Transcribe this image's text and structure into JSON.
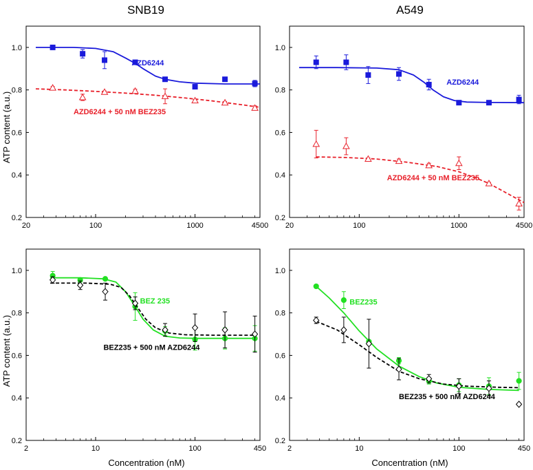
{
  "figure": {
    "ylabel": "ATP content (a.u.)",
    "xlabel": "Concentration (nM)",
    "column_titles": [
      "SNB19",
      "A549"
    ]
  },
  "colors": {
    "blue": "#1a1adb",
    "red": "#e8202a",
    "green": "#22e022",
    "black": "#000000"
  },
  "chart_data": [
    {
      "id": "snb19-azd",
      "type": "scatter",
      "title": "SNB19",
      "xlabel": "",
      "ylabel": "ATP content (a.u.)",
      "xscale": "log",
      "xlim": [
        20,
        4500
      ],
      "ylim": [
        0.2,
        1.1
      ],
      "xticks": [
        20,
        100,
        1000,
        4500
      ],
      "xtick_labels": [
        "20",
        "100",
        "1000",
        "4500"
      ],
      "yticks": [
        0.2,
        0.4,
        0.6,
        0.8,
        1.0
      ],
      "ytick_labels": [
        "0.2",
        "0.4",
        "0.6",
        "0.8",
        "1.0"
      ],
      "series": [
        {
          "name": "AZD6244",
          "color": "#1a1adb",
          "marker": "square-filled",
          "line": "solid",
          "x": [
            37,
            74,
            123,
            250,
            500,
            1000,
            2000,
            4000
          ],
          "y": [
            1.0,
            0.97,
            0.94,
            0.93,
            0.85,
            0.815,
            0.85,
            0.83
          ],
          "err": [
            0.004,
            0.02,
            0.04,
            0.005,
            0.005,
            0.01,
            0.01,
            0.015
          ],
          "fit": [
            [
              25,
              1.0
            ],
            [
              37,
              1.0
            ],
            [
              60,
              1.0
            ],
            [
              100,
              0.995
            ],
            [
              150,
              0.98
            ],
            [
              200,
              0.95
            ],
            [
              250,
              0.925
            ],
            [
              300,
              0.9
            ],
            [
              400,
              0.865
            ],
            [
              500,
              0.85
            ],
            [
              700,
              0.838
            ],
            [
              1000,
              0.832
            ],
            [
              2000,
              0.828
            ],
            [
              4500,
              0.828
            ]
          ],
          "label_text": "AZD6244",
          "label_at": [
            230,
            0.915
          ]
        },
        {
          "name": "AZD6244 + 50 nM BEZ235",
          "color": "#e8202a",
          "marker": "triangle-open",
          "line": "dashed",
          "x": [
            37,
            74,
            123,
            250,
            500,
            1000,
            2000,
            4000
          ],
          "y": [
            0.81,
            0.765,
            0.79,
            0.795,
            0.77,
            0.75,
            0.74,
            0.715
          ],
          "err": [
            0.006,
            0.015,
            0.005,
            0.008,
            0.035,
            0.005,
            0.005,
            0.01
          ],
          "fit": [
            [
              25,
              0.805
            ],
            [
              50,
              0.8
            ],
            [
              100,
              0.793
            ],
            [
              200,
              0.785
            ],
            [
              400,
              0.775
            ],
            [
              800,
              0.762
            ],
            [
              1500,
              0.748
            ],
            [
              3000,
              0.73
            ],
            [
              4500,
              0.718
            ]
          ],
          "label_text": "AZD6244 + 50 nM BEZ235",
          "label_at": [
            60,
            0.685
          ]
        }
      ]
    },
    {
      "id": "a549-azd",
      "type": "scatter",
      "title": "A549",
      "xlabel": "",
      "ylabel": "",
      "xscale": "log",
      "xlim": [
        20,
        4500
      ],
      "ylim": [
        0.2,
        1.1
      ],
      "xticks": [
        20,
        100,
        1000,
        4500
      ],
      "xtick_labels": [
        "20",
        "100",
        "1000",
        "4500"
      ],
      "yticks": [
        0.2,
        0.4,
        0.6,
        0.8,
        1.0
      ],
      "ytick_labels": [
        "0.2",
        "0.4",
        "0.6",
        "0.8",
        "1.0"
      ],
      "series": [
        {
          "name": "AZD6244",
          "color": "#1a1adb",
          "marker": "square-filled",
          "line": "solid",
          "x": [
            37,
            74,
            123,
            250,
            500,
            1000,
            2000,
            4000
          ],
          "y": [
            0.93,
            0.93,
            0.87,
            0.875,
            0.825,
            0.74,
            0.74,
            0.755
          ],
          "err": [
            0.03,
            0.035,
            0.04,
            0.03,
            0.025,
            0.005,
            0.01,
            0.02
          ],
          "fit": [
            [
              25,
              0.905
            ],
            [
              60,
              0.905
            ],
            [
              150,
              0.903
            ],
            [
              250,
              0.895
            ],
            [
              350,
              0.87
            ],
            [
              450,
              0.835
            ],
            [
              550,
              0.8
            ],
            [
              700,
              0.768
            ],
            [
              900,
              0.75
            ],
            [
              1200,
              0.743
            ],
            [
              2000,
              0.741
            ],
            [
              4500,
              0.74
            ]
          ],
          "label_text": "AZD6244",
          "label_at": [
            750,
            0.825
          ]
        },
        {
          "name": "AZD6244 + 50 nM BEZ235",
          "color": "#e8202a",
          "marker": "triangle-open",
          "line": "dashed",
          "x": [
            37,
            74,
            123,
            250,
            500,
            1000,
            2000,
            4000
          ],
          "y": [
            0.545,
            0.535,
            0.475,
            0.465,
            0.445,
            0.455,
            0.36,
            0.265
          ],
          "err": [
            0.065,
            0.04,
            0.005,
            0.01,
            0.01,
            0.03,
            0.005,
            0.03
          ],
          "fit": [
            [
              37,
              0.485
            ],
            [
              74,
              0.482
            ],
            [
              150,
              0.475
            ],
            [
              300,
              0.46
            ],
            [
              600,
              0.44
            ],
            [
              1000,
              0.415
            ],
            [
              1500,
              0.385
            ],
            [
              2000,
              0.36
            ],
            [
              3000,
              0.315
            ],
            [
              4500,
              0.27
            ]
          ],
          "label_text": "AZD6244 + 50 nM BEZ235",
          "label_at": [
            190,
            0.375
          ]
        }
      ]
    },
    {
      "id": "snb19-bez",
      "type": "scatter",
      "title": "",
      "xlabel": "Concentration (nM)",
      "ylabel": "ATP content (a.u.)",
      "xscale": "log",
      "xlim": [
        2,
        450
      ],
      "ylim": [
        0.2,
        1.1
      ],
      "xticks": [
        2,
        10,
        100,
        450
      ],
      "xtick_labels": [
        "2",
        "10",
        "100",
        "450"
      ],
      "yticks": [
        0.2,
        0.4,
        0.6,
        0.8,
        1.0
      ],
      "ytick_labels": [
        "0.2",
        "0.4",
        "0.6",
        "0.8",
        "1.0"
      ],
      "series": [
        {
          "name": "BEZ 235",
          "color": "#22e022",
          "marker": "circle-filled",
          "line": "solid",
          "x": [
            3.7,
            7,
            12.5,
            25,
            50,
            100,
            200,
            400
          ],
          "y": [
            0.975,
            0.955,
            0.96,
            0.83,
            0.715,
            0.675,
            0.68,
            0.68
          ],
          "err": [
            0.02,
            0.01,
            0.005,
            0.065,
            0.02,
            0.05,
            0.05,
            0.06
          ],
          "fit": [
            [
              3.5,
              0.965
            ],
            [
              7,
              0.965
            ],
            [
              12,
              0.96
            ],
            [
              16,
              0.945
            ],
            [
              20,
              0.9
            ],
            [
              25,
              0.83
            ],
            [
              30,
              0.77
            ],
            [
              38,
              0.72
            ],
            [
              50,
              0.69
            ],
            [
              70,
              0.682
            ],
            [
              100,
              0.68
            ],
            [
              200,
              0.68
            ],
            [
              400,
              0.68
            ]
          ],
          "label_text": "BEZ 235",
          "label_at": [
            28,
            0.845
          ]
        },
        {
          "name": "BEZ235 + 500 nM AZD6244",
          "color": "#000000",
          "marker": "diamond-open",
          "line": "dashed",
          "x": [
            3.7,
            7,
            12.5,
            25,
            50,
            100,
            200,
            400
          ],
          "y": [
            0.955,
            0.93,
            0.9,
            0.845,
            0.72,
            0.73,
            0.72,
            0.7
          ],
          "err": [
            0.015,
            0.02,
            0.04,
            0.03,
            0.03,
            0.065,
            0.085,
            0.085
          ],
          "fit": [
            [
              3.5,
              0.94
            ],
            [
              8,
              0.94
            ],
            [
              14,
              0.935
            ],
            [
              18,
              0.92
            ],
            [
              22,
              0.88
            ],
            [
              26,
              0.83
            ],
            [
              32,
              0.77
            ],
            [
              40,
              0.73
            ],
            [
              55,
              0.705
            ],
            [
              80,
              0.697
            ],
            [
              150,
              0.695
            ],
            [
              400,
              0.695
            ]
          ],
          "label_text": "BEZ235 + 500 nM AZD6244",
          "label_at": [
            12,
            0.625
          ]
        }
      ]
    },
    {
      "id": "a549-bez",
      "type": "scatter",
      "title": "",
      "xlabel": "Concentration (nM)",
      "ylabel": "",
      "xscale": "log",
      "xlim": [
        2,
        450
      ],
      "ylim": [
        0.2,
        1.1
      ],
      "xticks": [
        2,
        10,
        100,
        450
      ],
      "xtick_labels": [
        "2",
        "10",
        "100",
        "450"
      ],
      "yticks": [
        0.2,
        0.4,
        0.6,
        0.8,
        1.0
      ],
      "ytick_labels": [
        "0.2",
        "0.4",
        "0.6",
        "0.8",
        "1.0"
      ],
      "series": [
        {
          "name": "BEZ235",
          "color": "#22e022",
          "marker": "circle-filled",
          "line": "solid",
          "x": [
            3.7,
            7,
            12.5,
            25,
            50,
            100,
            200,
            400
          ],
          "y": [
            0.925,
            0.86,
            0.665,
            0.575,
            0.48,
            0.46,
            0.455,
            0.48
          ],
          "err": [
            0.005,
            0.04,
            0.005,
            0.015,
            0.015,
            0.03,
            0.04,
            0.04
          ],
          "fit": [
            [
              3.7,
              0.925
            ],
            [
              5,
              0.87
            ],
            [
              7,
              0.8
            ],
            [
              10,
              0.715
            ],
            [
              15,
              0.63
            ],
            [
              25,
              0.55
            ],
            [
              40,
              0.5
            ],
            [
              60,
              0.47
            ],
            [
              100,
              0.45
            ],
            [
              200,
              0.44
            ],
            [
              400,
              0.435
            ]
          ],
          "label_text": "BEZ235",
          "label_at": [
            8,
            0.84
          ]
        },
        {
          "name": "BEZ235 + 500 nM AZD6244",
          "color": "#000000",
          "marker": "diamond-open",
          "line": "dashed",
          "x": [
            3.7,
            7,
            12.5,
            25,
            50,
            100,
            200,
            400
          ],
          "y": [
            0.765,
            0.72,
            0.655,
            0.535,
            0.49,
            0.455,
            0.445,
            0.37
          ],
          "err": [
            0.015,
            0.06,
            0.115,
            0.05,
            0.02,
            0.035,
            0.035,
            0.005
          ],
          "fit": [
            [
              3.7,
              0.76
            ],
            [
              6,
              0.72
            ],
            [
              10,
              0.65
            ],
            [
              15,
              0.59
            ],
            [
              25,
              0.525
            ],
            [
              40,
              0.49
            ],
            [
              70,
              0.465
            ],
            [
              120,
              0.455
            ],
            [
              250,
              0.45
            ],
            [
              400,
              0.448
            ]
          ],
          "label_text": "BEZ235 + 500 nM AZD6244",
          "label_at": [
            25,
            0.395
          ]
        }
      ]
    }
  ]
}
